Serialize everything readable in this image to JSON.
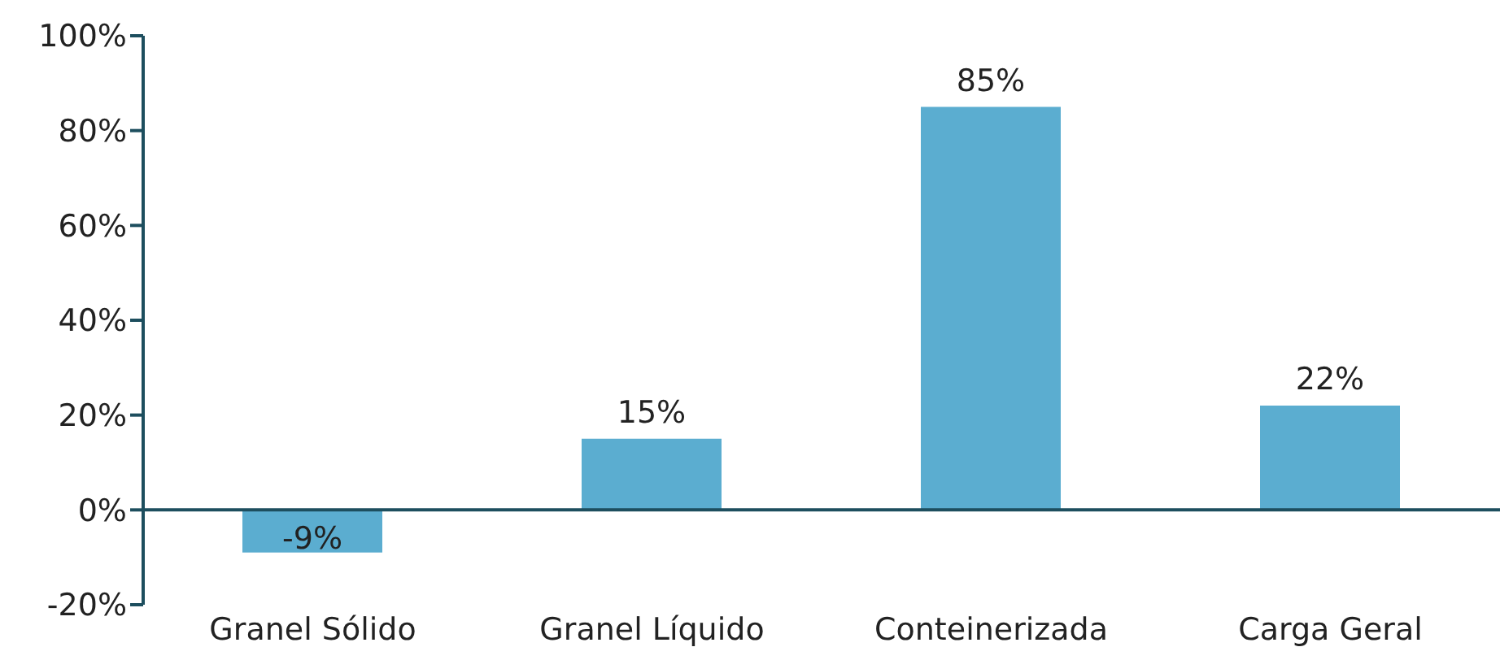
{
  "chart_data": {
    "type": "bar",
    "categories": [
      "Granel Sólido",
      "Granel Líquido",
      "Conteinerizada",
      "Carga Geral"
    ],
    "values": [
      -9,
      15,
      85,
      22
    ],
    "value_labels": [
      "-9%",
      "15%",
      "85%",
      "22%"
    ],
    "color": "#5badd0",
    "ylim": [
      -20,
      100
    ],
    "yticks": [
      {
        "value": -20,
        "label": "-20%"
      },
      {
        "value": 0,
        "label": "0%"
      },
      {
        "value": 20,
        "label": "20%"
      },
      {
        "value": 40,
        "label": "40%"
      },
      {
        "value": 60,
        "label": "60%"
      },
      {
        "value": 80,
        "label": "80%"
      },
      {
        "value": 100,
        "label": "100%"
      }
    ],
    "grid": false,
    "legend": false
  }
}
